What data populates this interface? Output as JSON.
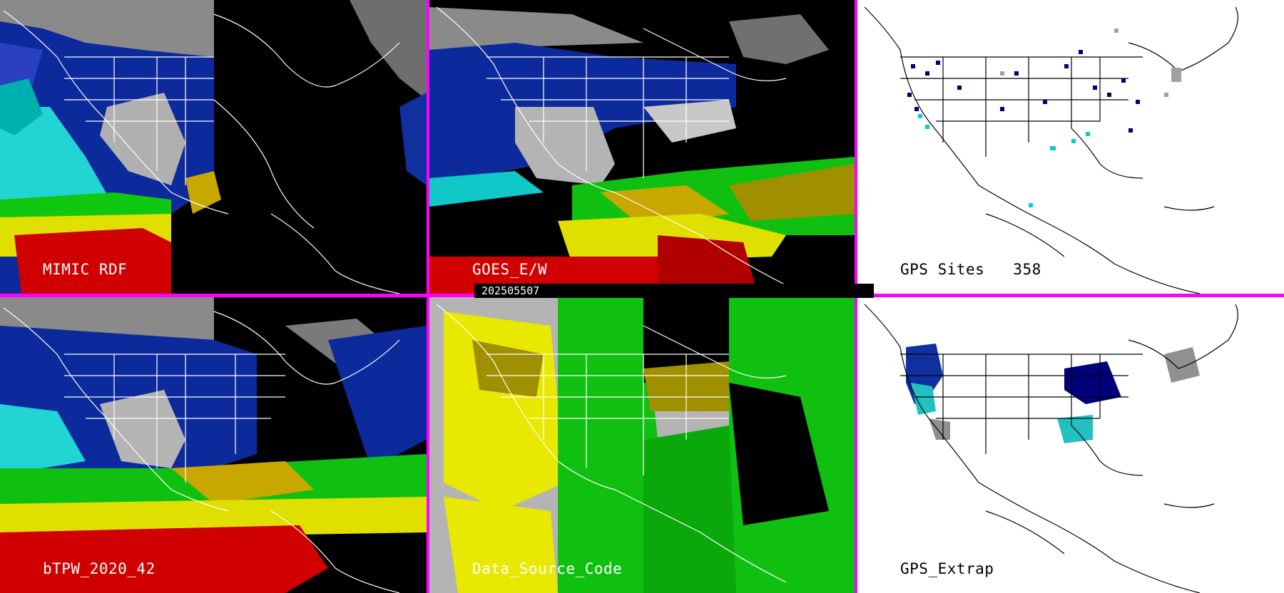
{
  "panels": [
    {
      "id": "mimic",
      "label": "MIMIC RDF"
    },
    {
      "id": "goes",
      "label": "GOES_E/W"
    },
    {
      "id": "gps-sites",
      "label": "GPS Sites",
      "count": "358"
    },
    {
      "id": "btpw",
      "label": "bTPW_2020_42"
    },
    {
      "id": "data-source",
      "label": "Data_Source_Code"
    },
    {
      "id": "gps-extrap",
      "label": "GPS_Extrap"
    }
  ],
  "timestamp": "202505507",
  "colors": {
    "separator": "#ff00ff",
    "tpw_low": "#00007a",
    "tpw_mid": "#00e0e0",
    "tpw_high": "#e8e800",
    "tpw_max": "#e00000",
    "source_green": "#00c800",
    "source_yellow": "#e8e800",
    "source_gray": "#b4b4b4"
  }
}
